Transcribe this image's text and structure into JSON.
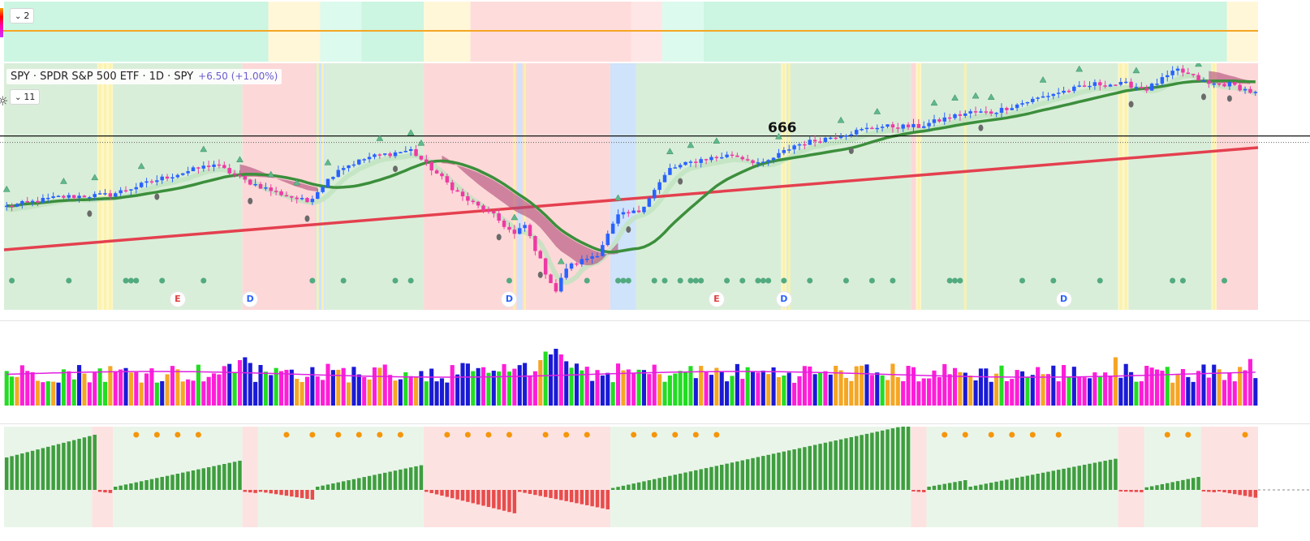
{
  "pane_top": {
    "collapse_label": "2"
  },
  "main": {
    "collapse_label": "11",
    "legend": {
      "title": "SPY · SPDR S&P 500 ETF · 1D · SPY",
      "change": "+6.50 (+1.00%)"
    },
    "price_level_label": "666",
    "markers": [
      {
        "letter": "E",
        "bar": 33,
        "color": "#e04040"
      },
      {
        "letter": "D",
        "bar": 47,
        "color": "#2962ff"
      },
      {
        "letter": "D",
        "bar": 97,
        "color": "#2962ff"
      },
      {
        "letter": "E",
        "bar": 137,
        "color": "#e04040"
      },
      {
        "letter": "D",
        "bar": 150,
        "color": "#2962ff"
      },
      {
        "letter": "D",
        "bar": 204,
        "color": "#2962ff"
      }
    ]
  },
  "colors": {
    "bg_green": "#d9eed9",
    "bg_red": "#fdd8d8",
    "bg_blue": "#cfe3fa",
    "bg_yellow": "#fdf6c8",
    "top_green": "#ccf5e2",
    "top_yellow": "#fff7d8",
    "top_red": "#ffdcdc",
    "top_pink": "#ffe6e6",
    "candle_up": "#2962ff",
    "candle_down": "#ee3aa4",
    "sma_green": "#3c8f3c",
    "sma_red": "#e4404f",
    "ema_light": "#bfe3bf",
    "cloud": "#b04a78",
    "orange_line": "#f5a623",
    "vol_ma": "#e020e0",
    "osc_pos": "#3f9e3f",
    "osc_neg": "#e84c4c",
    "dot_orange": "#f5960a",
    "dot_green": "#52ab7f",
    "tri_green": "#5fb98a"
  },
  "chart_data": {
    "type": "candlestick",
    "title": "SPY · SPDR S&P 500 ETF · 1D · SPY",
    "n_bars": 242,
    "price_range": [
      590,
      690
    ],
    "price_line": 666,
    "close_series_note": "",
    "regimes": [
      {
        "start": 0,
        "end": 18,
        "c": "g"
      },
      {
        "start": 18,
        "end": 21,
        "c": "y"
      },
      {
        "start": 21,
        "end": 46,
        "c": "g"
      },
      {
        "start": 46,
        "end": 60,
        "c": "r"
      },
      {
        "start": 60,
        "end": 62,
        "c": "b"
      },
      {
        "start": 62,
        "end": 81,
        "c": "g"
      },
      {
        "start": 81,
        "end": 99,
        "c": "r"
      },
      {
        "start": 99,
        "end": 100,
        "c": "b"
      },
      {
        "start": 100,
        "end": 117,
        "c": "r"
      },
      {
        "start": 117,
        "end": 122,
        "c": "b"
      },
      {
        "start": 122,
        "end": 150,
        "c": "g"
      },
      {
        "start": 150,
        "end": 151,
        "c": "y"
      },
      {
        "start": 151,
        "end": 175,
        "c": "g"
      },
      {
        "start": 175,
        "end": 176,
        "c": "r"
      },
      {
        "start": 176,
        "end": 177,
        "c": "y"
      },
      {
        "start": 177,
        "end": 215,
        "c": "g"
      },
      {
        "start": 215,
        "end": 217,
        "c": "y"
      },
      {
        "start": 217,
        "end": 233,
        "c": "g"
      },
      {
        "start": 233,
        "end": 234,
        "c": "y"
      },
      {
        "start": 234,
        "end": 242,
        "c": "r"
      }
    ],
    "top_regimes": [
      {
        "start": 0,
        "end": 51,
        "c": "g"
      },
      {
        "start": 51,
        "end": 61,
        "c": "y"
      },
      {
        "start": 61,
        "end": 69,
        "c": "g2"
      },
      {
        "start": 69,
        "end": 81,
        "c": "g"
      },
      {
        "start": 81,
        "end": 90,
        "c": "y"
      },
      {
        "start": 90,
        "end": 121,
        "c": "r"
      },
      {
        "start": 121,
        "end": 127,
        "c": "p"
      },
      {
        "start": 127,
        "end": 135,
        "c": "g2"
      },
      {
        "start": 135,
        "end": 236,
        "c": "g"
      },
      {
        "start": 236,
        "end": 242,
        "c": "y"
      }
    ],
    "key_points": [
      [
        0,
        636
      ],
      [
        10,
        640
      ],
      [
        20,
        641
      ],
      [
        30,
        648
      ],
      [
        40,
        654
      ],
      [
        46,
        647
      ],
      [
        52,
        642
      ],
      [
        58,
        638
      ],
      [
        64,
        652
      ],
      [
        70,
        657
      ],
      [
        78,
        660
      ],
      [
        82,
        652
      ],
      [
        88,
        640
      ],
      [
        94,
        632
      ],
      [
        98,
        624
      ],
      [
        100,
        628
      ],
      [
        104,
        608
      ],
      [
        106,
        600
      ],
      [
        108,
        610
      ],
      [
        114,
        616
      ],
      [
        118,
        632
      ],
      [
        122,
        634
      ],
      [
        128,
        652
      ],
      [
        134,
        656
      ],
      [
        140,
        658
      ],
      [
        146,
        654
      ],
      [
        152,
        662
      ],
      [
        160,
        666
      ],
      [
        168,
        670
      ],
      [
        176,
        670
      ],
      [
        182,
        674
      ],
      [
        186,
        676
      ],
      [
        190,
        676
      ],
      [
        196,
        680
      ],
      [
        202,
        684
      ],
      [
        210,
        688
      ],
      [
        216,
        688
      ],
      [
        220,
        686
      ],
      [
        226,
        694
      ],
      [
        232,
        688
      ],
      [
        236,
        688
      ],
      [
        241,
        684
      ]
    ],
    "volume_ma": 0.55,
    "volume_spikes": [
      [
        45,
        0.8
      ],
      [
        46,
        0.85
      ],
      [
        47,
        0.75
      ],
      [
        82,
        0.65
      ],
      [
        100,
        0.75
      ],
      [
        103,
        0.8
      ],
      [
        104,
        0.95
      ],
      [
        105,
        0.9
      ],
      [
        106,
        1.0
      ],
      [
        107,
        0.9
      ],
      [
        108,
        0.78
      ],
      [
        214,
        0.85
      ],
      [
        220,
        0.7
      ],
      [
        233,
        0.72
      ],
      [
        240,
        0.82
      ]
    ],
    "osc_segments": [
      {
        "start": 0,
        "end": 17,
        "sign": 1,
        "from": 0.5,
        "to": 0.85
      },
      {
        "start": 18,
        "end": 20,
        "sign": -1,
        "from": 0.05,
        "to": 0.08
      },
      {
        "start": 21,
        "end": 45,
        "sign": 1,
        "from": 0.05,
        "to": 0.45
      },
      {
        "start": 46,
        "end": 48,
        "sign": -1,
        "from": 0.05,
        "to": 0.08
      },
      {
        "start": 49,
        "end": 59,
        "sign": -1,
        "from": 0.05,
        "to": 0.25
      },
      {
        "start": 60,
        "end": 80,
        "sign": 1,
        "from": 0.05,
        "to": 0.38
      },
      {
        "start": 81,
        "end": 98,
        "sign": -1,
        "from": 0.05,
        "to": 0.6
      },
      {
        "start": 99,
        "end": 116,
        "sign": -1,
        "from": 0.05,
        "to": 0.5
      },
      {
        "start": 117,
        "end": 174,
        "sign": 1,
        "from": 0.03,
        "to": 1.0
      },
      {
        "start": 175,
        "end": 177,
        "sign": -1,
        "from": 0.04,
        "to": 0.06
      },
      {
        "start": 178,
        "end": 185,
        "sign": 1,
        "from": 0.05,
        "to": 0.15
      },
      {
        "start": 186,
        "end": 214,
        "sign": 1,
        "from": 0.05,
        "to": 0.48
      },
      {
        "start": 215,
        "end": 219,
        "sign": -1,
        "from": 0.04,
        "to": 0.06
      },
      {
        "start": 220,
        "end": 230,
        "sign": 1,
        "from": 0.04,
        "to": 0.2
      },
      {
        "start": 231,
        "end": 233,
        "sign": -1,
        "from": 0.04,
        "to": 0.06
      },
      {
        "start": 234,
        "end": 241,
        "sign": -1,
        "from": 0.04,
        "to": 0.2
      }
    ],
    "osc_dots": [
      25,
      29,
      33,
      37,
      54,
      59,
      64,
      68,
      72,
      76,
      85,
      89,
      93,
      97,
      104,
      108,
      112,
      121,
      125,
      129,
      133,
      137,
      181,
      185,
      190,
      194,
      198,
      203,
      224,
      228,
      239
    ],
    "green_dots": [
      1,
      12,
      23,
      24,
      25,
      30,
      38,
      59,
      65,
      75,
      78,
      97,
      112,
      118,
      119,
      120,
      125,
      127,
      130,
      132,
      133,
      134,
      139,
      142,
      145,
      146,
      147,
      150,
      155,
      162,
      167,
      171,
      182,
      183,
      184,
      196,
      202,
      211,
      225,
      227,
      235
    ],
    "up_triangles": [
      0,
      11,
      17,
      26,
      38,
      45,
      51,
      56,
      62,
      72,
      78,
      80,
      98,
      107,
      118,
      128,
      132,
      137,
      149,
      161,
      168,
      179,
      183,
      187,
      190,
      200,
      207,
      218,
      225,
      230
    ],
    "dark_dots": [
      16,
      29,
      47,
      58,
      75,
      95,
      103,
      120,
      130,
      163,
      188,
      217,
      231,
      236
    ]
  }
}
